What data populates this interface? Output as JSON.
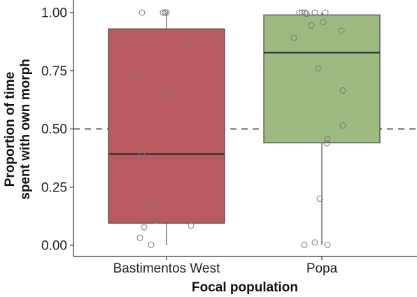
{
  "chart_data": {
    "type": "boxplot",
    "xlabel": "Focal population",
    "ylabel_lines": [
      "Proportion of time",
      "spent with own morph"
    ],
    "ylim": [
      0,
      1
    ],
    "yticks": [
      "0.00",
      "0.25",
      "0.50",
      "0.75",
      "1.00"
    ],
    "yticks_values": [
      0,
      0.25,
      0.5,
      0.75,
      1.0
    ],
    "reference_line": {
      "y": 0.5,
      "style": "dashed",
      "color": "#666666"
    },
    "grid": false,
    "categories": [
      "Bastimentos West",
      "Popa"
    ],
    "boxes": [
      {
        "category": "Bastimentos West",
        "fill": "#b85a5e",
        "whisker_low": 0.0,
        "q1": 0.095,
        "median": 0.392,
        "q3": 0.93,
        "whisker_high": 1.0,
        "points": [
          {
            "x": -0.35,
            "y": 1.0
          },
          {
            "x": -0.05,
            "y": 1.0
          },
          {
            "x": -0.02,
            "y": 1.0
          },
          {
            "x": 0.0,
            "y": 1.0
          },
          {
            "x": 0.28,
            "y": 0.862
          },
          {
            "x": -0.42,
            "y": 0.72
          },
          {
            "x": 0.0,
            "y": 0.645
          },
          {
            "x": -0.35,
            "y": 0.39
          },
          {
            "x": 0.12,
            "y": 0.305
          },
          {
            "x": -0.25,
            "y": 0.165
          },
          {
            "x": -0.15,
            "y": 0.107
          },
          {
            "x": 0.35,
            "y": 0.085
          },
          {
            "x": -0.32,
            "y": 0.078
          },
          {
            "x": -0.38,
            "y": 0.032
          },
          {
            "x": -0.22,
            "y": 0.002
          }
        ]
      },
      {
        "category": "Popa",
        "fill": "#9dba81",
        "whisker_low": 0.0,
        "q1": 0.44,
        "median": 0.828,
        "q3": 0.99,
        "whisker_high": 1.0,
        "points": [
          {
            "x": -0.32,
            "y": 1.0
          },
          {
            "x": -0.28,
            "y": 1.0
          },
          {
            "x": -0.24,
            "y": 1.0
          },
          {
            "x": -0.1,
            "y": 1.0
          },
          {
            "x": 0.05,
            "y": 1.0
          },
          {
            "x": -0.22,
            "y": 0.995
          },
          {
            "x": 0.02,
            "y": 0.96
          },
          {
            "x": -0.15,
            "y": 0.945
          },
          {
            "x": 0.28,
            "y": 0.922
          },
          {
            "x": -0.4,
            "y": 0.892
          },
          {
            "x": -0.05,
            "y": 0.76
          },
          {
            "x": 0.3,
            "y": 0.665
          },
          {
            "x": 0.3,
            "y": 0.515
          },
          {
            "x": 0.08,
            "y": 0.455
          },
          {
            "x": 0.07,
            "y": 0.438
          },
          {
            "x": -0.03,
            "y": 0.2
          },
          {
            "x": -0.1,
            "y": 0.012
          },
          {
            "x": -0.25,
            "y": 0.002
          },
          {
            "x": 0.08,
            "y": 0.002
          }
        ]
      }
    ]
  }
}
